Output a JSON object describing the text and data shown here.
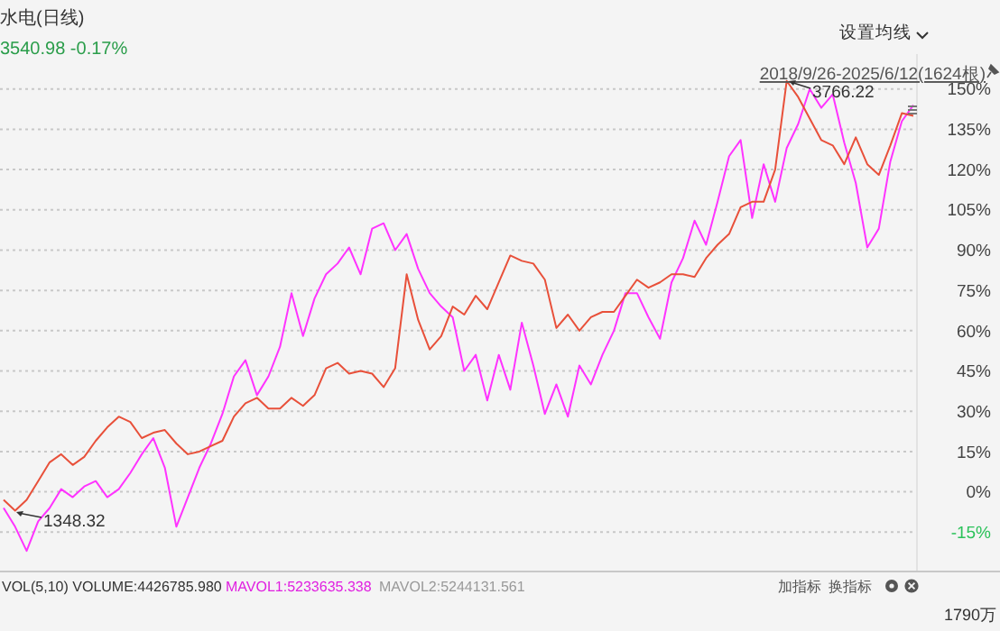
{
  "chart_data": {
    "type": "line",
    "title": "水电(日线)",
    "subtitle": "3540.98 -0.17%",
    "annotations": [
      "2018/9/26-2025/6/12(1624根)",
      "设置均线",
      "VOL(5,10) VOLUME:4426785.980",
      "MAVOL1:5233635.338",
      "MAVOL2:5244131.561",
      "加指标",
      "换指标",
      "1790万",
      "3766.22",
      "1348.32"
    ],
    "categories": [
      null,
      null,
      null,
      null,
      null,
      null,
      null,
      null,
      null,
      null,
      null,
      null,
      null,
      null,
      null,
      null,
      null,
      null,
      null,
      null,
      null,
      null,
      null,
      null,
      null,
      null,
      null,
      null,
      null,
      null,
      null,
      null,
      null,
      null,
      null,
      null,
      null,
      null,
      null,
      null,
      null,
      null,
      null,
      null,
      null,
      null,
      null,
      null,
      null,
      null,
      null,
      null,
      null,
      null,
      null,
      null,
      null,
      null,
      null,
      null,
      null,
      null,
      null,
      null,
      null,
      null,
      null,
      null,
      null,
      null,
      null,
      null,
      null,
      null,
      null,
      null,
      null,
      null,
      null,
      null
    ],
    "ylim": [
      -29,
      163
    ],
    "yticks": [
      {
        "value": -15,
        "label": "-15%"
      },
      {
        "value": 0,
        "label": "0%"
      },
      {
        "value": 15,
        "label": "15%"
      },
      {
        "value": 30,
        "label": "30%"
      },
      {
        "value": 45,
        "label": "45%"
      },
      {
        "value": 60,
        "label": "60%"
      },
      {
        "value": 75,
        "label": "75%"
      },
      {
        "value": 90,
        "label": "90%"
      },
      {
        "value": 105,
        "label": "105%"
      },
      {
        "value": 120,
        "label": "120%"
      },
      {
        "value": 135,
        "label": "135%"
      },
      {
        "value": 150,
        "label": "150%"
      }
    ],
    "grid": "y",
    "tick_labels": "y",
    "series": [
      {
        "color": "#ff33ff",
        "values": [
          -6,
          -13,
          -22,
          -11,
          -6,
          1,
          -2,
          2,
          4,
          -2,
          1,
          7,
          14,
          20,
          9,
          -13,
          -2,
          9,
          18,
          29,
          43,
          49,
          36,
          43,
          54,
          74,
          58,
          72,
          81,
          85,
          91,
          81,
          98,
          100,
          90,
          96,
          83,
          74,
          69,
          65,
          45,
          51,
          34,
          51,
          38,
          63,
          47,
          29,
          40,
          28,
          47,
          40,
          51,
          60,
          74,
          74,
          65,
          57,
          78,
          87,
          101,
          92,
          108,
          125,
          131,
          102,
          122,
          108,
          128,
          137,
          150,
          143,
          148,
          130,
          115,
          91,
          98,
          123,
          138,
          144
        ]
      },
      {
        "color": "#e8503a",
        "values": [
          -3,
          -7,
          -3,
          4,
          11,
          14,
          10,
          13,
          19,
          24,
          28,
          26,
          20,
          22,
          23,
          18,
          14,
          15,
          17,
          19,
          28,
          33,
          35,
          31,
          31,
          35,
          32,
          36,
          46,
          48,
          44,
          45,
          44,
          39,
          46,
          81,
          64,
          53,
          58,
          69,
          66,
          73,
          68,
          78,
          88,
          86,
          85,
          79,
          61,
          66,
          60,
          65,
          67,
          67,
          73,
          79,
          76,
          78,
          81,
          81,
          80,
          87,
          92,
          96,
          106,
          108,
          108,
          120,
          153,
          147,
          139,
          131,
          129,
          122,
          132,
          122,
          118,
          129,
          141,
          140
        ]
      }
    ]
  }
}
